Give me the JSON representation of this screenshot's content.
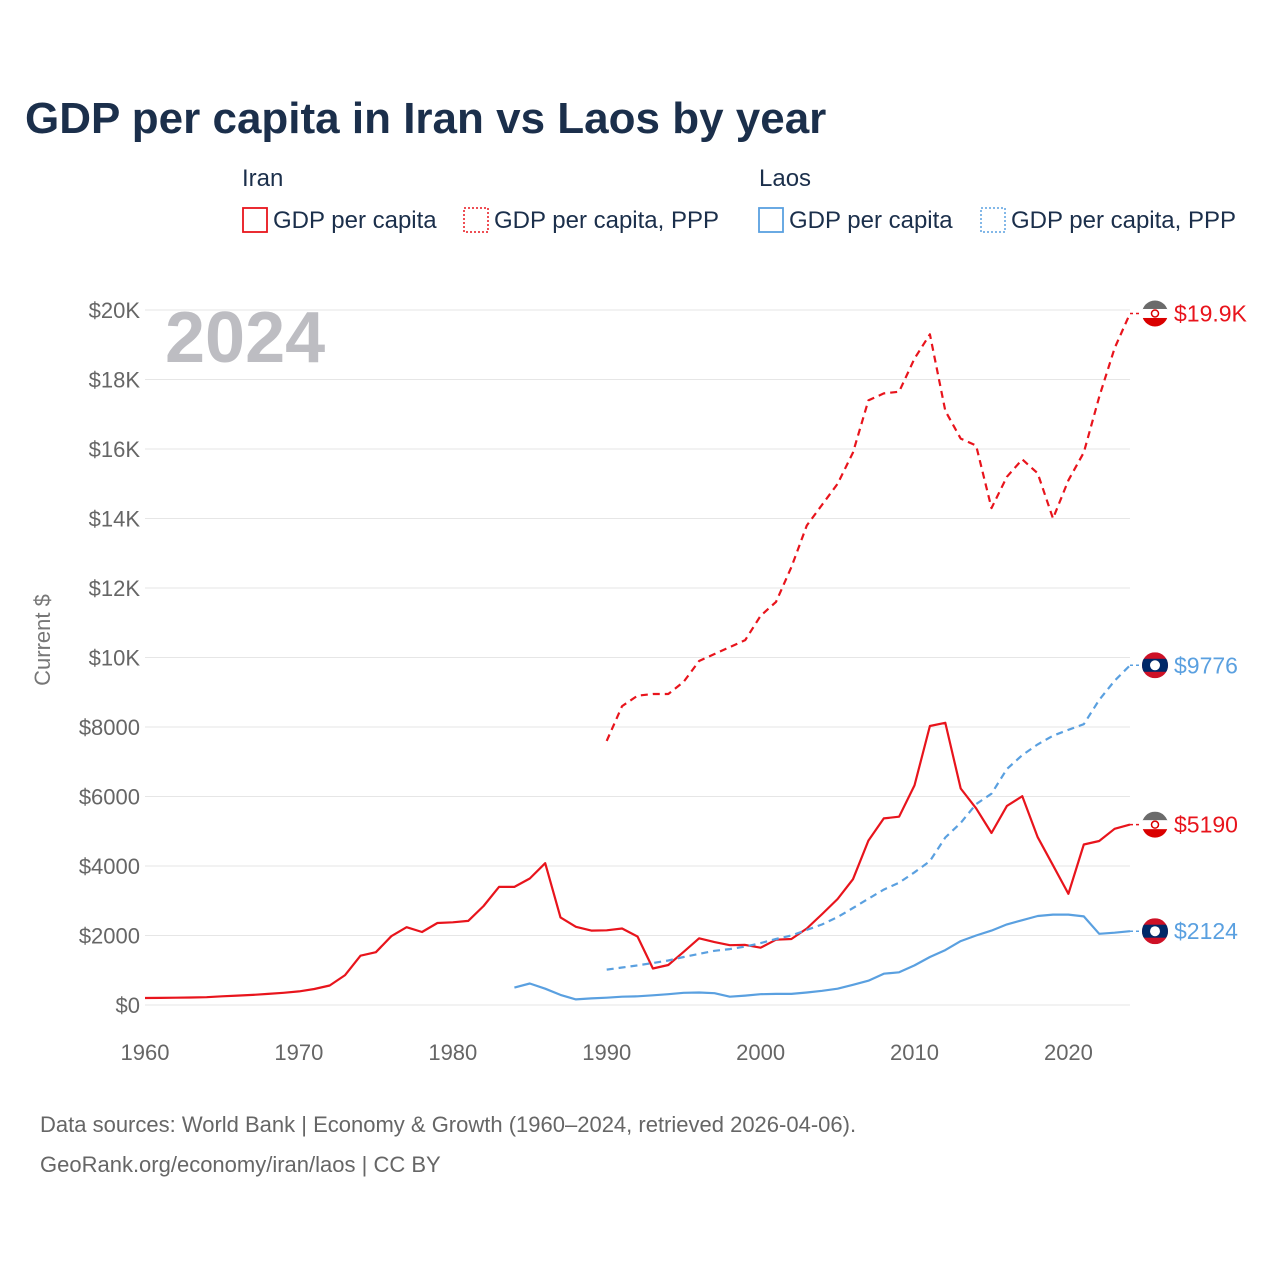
{
  "chart_data": {
    "type": "line",
    "title": "GDP per capita in Iran vs Laos by year",
    "ylabel": "Current $",
    "xlabel": "",
    "xlim": [
      1960,
      2024
    ],
    "ylim": [
      0,
      20000
    ],
    "x_ticks": [
      1960,
      1970,
      1980,
      1990,
      2000,
      2010,
      2020
    ],
    "x_tick_labels": [
      "1960",
      "1970",
      "1980",
      "1990",
      "2000",
      "2010",
      "2020"
    ],
    "y_ticks": [
      0,
      2000,
      4000,
      6000,
      8000,
      10000,
      12000,
      14000,
      16000,
      18000,
      20000
    ],
    "y_tick_labels": [
      "$0",
      "$2000",
      "$4000",
      "$6000",
      "$8000",
      "$10K",
      "$12K",
      "$14K",
      "$16K",
      "$18K",
      "$20K"
    ],
    "year_label": "2024",
    "legend": {
      "groups": [
        {
          "name": "Iran",
          "items": [
            "GDP per capita",
            "GDP per capita, PPP"
          ]
        },
        {
          "name": "Laos",
          "items": [
            "GDP per capita",
            "GDP per capita, PPP"
          ]
        }
      ]
    },
    "series": [
      {
        "name": "Iran GDP per capita PPP",
        "color": "#e8141c",
        "dash": true,
        "end_label": "$19.9K",
        "x": [
          1990,
          1991,
          1992,
          1993,
          1994,
          1995,
          1996,
          1997,
          1998,
          1999,
          2000,
          2001,
          2002,
          2003,
          2004,
          2005,
          2006,
          2007,
          2008,
          2009,
          2010,
          2011,
          2012,
          2013,
          2014,
          2015,
          2016,
          2017,
          2018,
          2019,
          2020,
          2021,
          2022,
          2023,
          2024
        ],
        "values": [
          7600,
          8600,
          8900,
          8950,
          8950,
          9300,
          9900,
          10100,
          10300,
          10500,
          11200,
          11600,
          12600,
          13800,
          14400,
          15000,
          15900,
          17400,
          17600,
          17650,
          18600,
          19300,
          17100,
          16300,
          16100,
          14300,
          15200,
          15700,
          15300,
          14000,
          15100,
          15900,
          17500,
          18900,
          19900
        ]
      },
      {
        "name": "Iran GDP per capita",
        "color": "#e8141c",
        "dash": false,
        "end_label": "$5190",
        "x": [
          1960,
          1961,
          1962,
          1963,
          1964,
          1965,
          1966,
          1967,
          1968,
          1969,
          1970,
          1971,
          1972,
          1973,
          1974,
          1975,
          1976,
          1977,
          1978,
          1979,
          1980,
          1981,
          1982,
          1983,
          1984,
          1985,
          1986,
          1987,
          1988,
          1989,
          1990,
          1991,
          1992,
          1993,
          1994,
          1995,
          1996,
          1997,
          1998,
          1999,
          2000,
          2001,
          2002,
          2003,
          2004,
          2005,
          2006,
          2007,
          2008,
          2009,
          2010,
          2011,
          2012,
          2013,
          2014,
          2015,
          2016,
          2017,
          2018,
          2019,
          2020,
          2021,
          2022,
          2023,
          2024
        ],
        "values": [
          200,
          205,
          210,
          215,
          225,
          250,
          270,
          290,
          320,
          350,
          390,
          460,
          560,
          860,
          1420,
          1520,
          1980,
          2240,
          2100,
          2360,
          2380,
          2420,
          2850,
          3400,
          3400,
          3640,
          4080,
          2520,
          2250,
          2140,
          2150,
          2200,
          1970,
          1050,
          1150,
          1530,
          1920,
          1810,
          1720,
          1730,
          1650,
          1880,
          1900,
          2200,
          2620,
          3050,
          3620,
          4730,
          5370,
          5420,
          6320,
          8030,
          8120,
          6230,
          5660,
          4950,
          5730,
          6010,
          4830,
          4020,
          3200,
          4620,
          4720,
          5070,
          5190
        ]
      },
      {
        "name": "Laos GDP per capita PPP",
        "color": "#5aa0e0",
        "dash": true,
        "end_label": "$9776",
        "x": [
          1990,
          1991,
          1992,
          1993,
          1994,
          1995,
          1996,
          1997,
          1998,
          1999,
          2000,
          2001,
          2002,
          2003,
          2004,
          2005,
          2006,
          2007,
          2008,
          2009,
          2010,
          2011,
          2012,
          2013,
          2014,
          2015,
          2016,
          2017,
          2018,
          2019,
          2020,
          2021,
          2022,
          2023,
          2024
        ],
        "values": [
          1020,
          1080,
          1140,
          1210,
          1280,
          1380,
          1470,
          1560,
          1610,
          1680,
          1780,
          1900,
          2000,
          2160,
          2320,
          2530,
          2790,
          3060,
          3320,
          3520,
          3820,
          4140,
          4820,
          5240,
          5780,
          6080,
          6790,
          7190,
          7500,
          7750,
          7920,
          8080,
          8780,
          9330,
          9776
        ]
      },
      {
        "name": "Laos GDP per capita",
        "color": "#5aa0e0",
        "dash": false,
        "end_label": "$2124",
        "x": [
          1984,
          1985,
          1986,
          1987,
          1988,
          1989,
          1990,
          1991,
          1992,
          1993,
          1994,
          1995,
          1996,
          1997,
          1998,
          1999,
          2000,
          2001,
          2002,
          2003,
          2004,
          2005,
          2006,
          2007,
          2008,
          2009,
          2010,
          2011,
          2012,
          2013,
          2014,
          2015,
          2016,
          2017,
          2018,
          2019,
          2020,
          2021,
          2022,
          2023,
          2024
        ],
        "values": [
          500,
          620,
          470,
          290,
          160,
          190,
          210,
          240,
          250,
          280,
          310,
          350,
          360,
          340,
          240,
          270,
          310,
          320,
          320,
          360,
          410,
          470,
          580,
          700,
          900,
          940,
          1140,
          1380,
          1580,
          1840,
          2000,
          2140,
          2320,
          2440,
          2560,
          2600,
          2600,
          2550,
          2050,
          2080,
          2124
        ]
      }
    ]
  },
  "source": {
    "line1": "Data sources: World Bank | Economy & Growth (1960–2024, retrieved 2026-04-06).",
    "line2": "GeoRank.org/economy/iran/laos | CC BY"
  },
  "flags": {
    "iran_icon": "iran-flag-icon",
    "laos_icon": "laos-flag-icon",
    "iran_colors": [
      "#239f40",
      "#ffffff",
      "#da0000"
    ],
    "laos_colors": [
      "#ce1126",
      "#002868",
      "#ffffff"
    ]
  }
}
